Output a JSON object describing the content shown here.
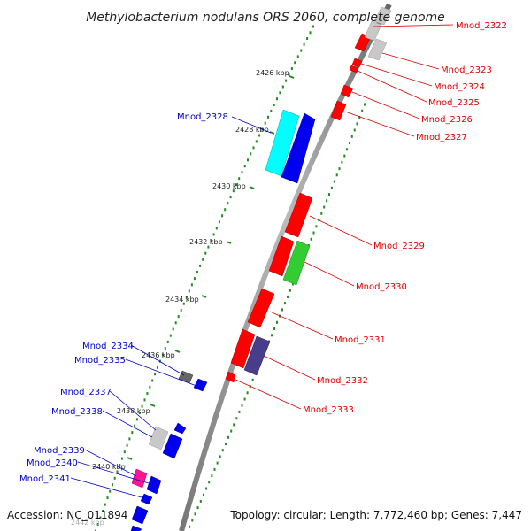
{
  "title": "Methylobacterium nodulans ORS 2060, complete genome",
  "footer": {
    "accession": "Accession: NC_011894",
    "topology": "Topology: circular; Length: 7,772,460 bp; Genes: 7,447"
  },
  "colors": {
    "label_left": "#0000cc",
    "label_right": "#dd0000",
    "backbone": "#888888",
    "tick_track": "#228b22"
  },
  "scale": {
    "unit": "kbp",
    "ticks": [
      {
        "label": "2426 kbp"
      },
      {
        "label": "2428 kbp"
      },
      {
        "label": "2430 kbp"
      },
      {
        "label": "2432 kbp"
      },
      {
        "label": "2434 kbp"
      },
      {
        "label": "2436 kbp"
      },
      {
        "label": "2438 kbp"
      },
      {
        "label": "2440 kbp"
      },
      {
        "label": "2442 kbp"
      }
    ]
  },
  "genes": [
    {
      "label": "Mnod_2322",
      "strand": "right",
      "color": "#ff0000"
    },
    {
      "label": "Mnod_2323",
      "strand": "right",
      "color": "#ff0000"
    },
    {
      "label": "Mnod_2324",
      "strand": "right",
      "color": "#ff0000"
    },
    {
      "label": "Mnod_2325",
      "strand": "right",
      "color": "#ff0000"
    },
    {
      "label": "Mnod_2326",
      "strand": "right",
      "color": "#ff0000"
    },
    {
      "label": "Mnod_2327",
      "strand": "right",
      "color": "#ff0000"
    },
    {
      "label": "Mnod_2328",
      "strand": "left",
      "color": "#0000ee"
    },
    {
      "label": "Mnod_2329",
      "strand": "right",
      "color": "#ff0000"
    },
    {
      "label": "Mnod_2330",
      "strand": "right",
      "color": "#33cc33"
    },
    {
      "label": "Mnod_2331",
      "strand": "right",
      "color": "#ff0000"
    },
    {
      "label": "Mnod_2332",
      "strand": "right",
      "color": "#483d8b"
    },
    {
      "label": "Mnod_2333",
      "strand": "right",
      "color": "#ff0000"
    },
    {
      "label": "Mnod_2334",
      "strand": "left",
      "color": "#666666"
    },
    {
      "label": "Mnod_2335",
      "strand": "left",
      "color": "#0000ee"
    },
    {
      "label": "Mnod_2337",
      "strand": "left",
      "color": "#0000ee"
    },
    {
      "label": "Mnod_2338",
      "strand": "left",
      "color": "#0000ee"
    },
    {
      "label": "Mnod_2339",
      "strand": "left",
      "color": "#ff1493"
    },
    {
      "label": "Mnod_2340",
      "strand": "left",
      "color": "#0000ee"
    },
    {
      "label": "Mnod_2341",
      "strand": "left",
      "color": "#0000ee"
    }
  ]
}
